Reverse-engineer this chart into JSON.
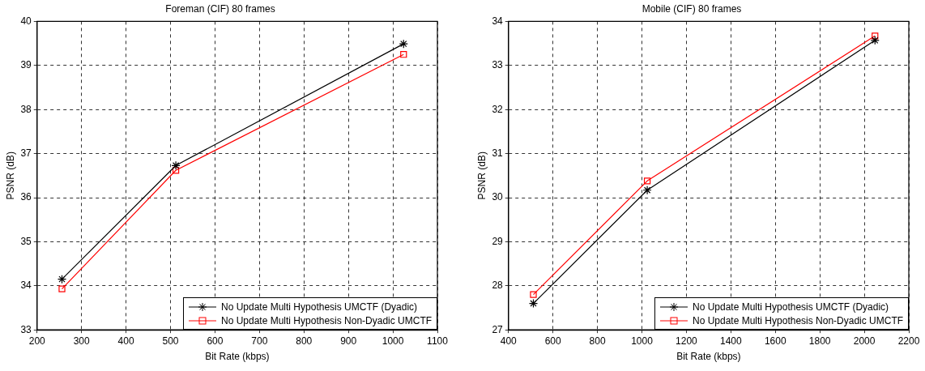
{
  "chart_data": [
    {
      "type": "line",
      "title": "Foreman (CIF) 80 frames",
      "xlabel": "Bit Rate (kbps)",
      "ylabel": "PSNR (dB)",
      "xlim": [
        200,
        1100
      ],
      "xticks": [
        200,
        300,
        400,
        500,
        600,
        700,
        800,
        900,
        1000,
        1100
      ],
      "ylim": [
        33,
        40
      ],
      "yticks": [
        33,
        34,
        35,
        36,
        37,
        38,
        39,
        40
      ],
      "grid": true,
      "legend": "bottom right",
      "line_style": "solid",
      "series": [
        {
          "name": "No Update Multi Hypothesis UMCTF (Dyadic)",
          "color": "#000000",
          "marker": "cross",
          "x": [
            256,
            512,
            1024
          ],
          "values": [
            34.15,
            36.73,
            39.49
          ]
        },
        {
          "name": "No Update Multi Hypothesis Non-Dyadic UMCTF",
          "color": "#ff0000",
          "marker": "square",
          "x": [
            256,
            512,
            1024
          ],
          "values": [
            33.93,
            36.62,
            39.25
          ]
        }
      ]
    },
    {
      "type": "line",
      "title": "Mobile (CIF) 80 frames",
      "xlabel": "Bit Rate (kbps)",
      "ylabel": "PSNR (dB)",
      "xlim": [
        400,
        2200
      ],
      "xticks": [
        400,
        600,
        800,
        1000,
        1200,
        1400,
        1600,
        1800,
        2000,
        2200
      ],
      "ylim": [
        27,
        34
      ],
      "yticks": [
        27,
        28,
        29,
        30,
        31,
        32,
        33,
        34
      ],
      "grid": true,
      "legend": "bottom right",
      "line_style": "solid",
      "series": [
        {
          "name": "No Update Multi Hypothesis UMCTF (Dyadic)",
          "color": "#000000",
          "marker": "cross",
          "x": [
            512,
            1024,
            2048
          ],
          "values": [
            27.6,
            30.17,
            33.57
          ]
        },
        {
          "name": "No Update Multi Hypothesis Non-Dyadic UMCTF",
          "color": "#ff0000",
          "marker": "square",
          "x": [
            512,
            1024,
            2048
          ],
          "values": [
            27.8,
            30.38,
            33.67
          ]
        }
      ]
    }
  ]
}
